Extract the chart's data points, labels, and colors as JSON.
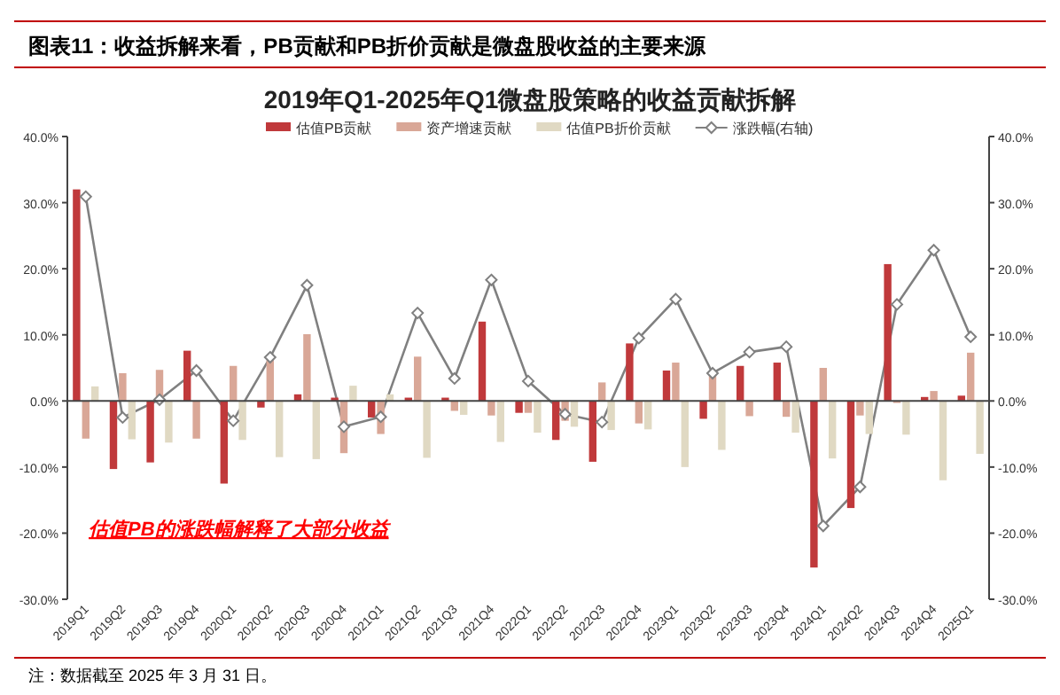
{
  "chart_data": {
    "type": "bar",
    "title": "图表11：收益拆解来看，PB贡献和PB折价贡献是微盘股收益的主要来源",
    "subtitle": "2019年Q1-2025年Q1微盘股策略的收益贡献拆解",
    "categories": [
      "2019Q1",
      "2019Q2",
      "2019Q3",
      "2019Q4",
      "2020Q1",
      "2020Q2",
      "2020Q3",
      "2020Q4",
      "2021Q1",
      "2021Q2",
      "2021Q3",
      "2021Q4",
      "2022Q1",
      "2022Q2",
      "2022Q3",
      "2022Q4",
      "2023Q1",
      "2023Q2",
      "2023Q3",
      "2023Q4",
      "2024Q1",
      "2024Q2",
      "2024Q3",
      "2024Q4",
      "2025Q1"
    ],
    "series": [
      {
        "name": "估值PB贡献",
        "color": "#c0393b",
        "values": [
          32.0,
          -10.3,
          -9.3,
          7.6,
          -12.5,
          -1.0,
          1.0,
          0.5,
          -2.5,
          0.5,
          0.5,
          12.0,
          -1.8,
          -5.9,
          -9.2,
          8.7,
          4.6,
          -2.7,
          5.3,
          5.8,
          -25.2,
          -16.2,
          20.7,
          0.6,
          0.8
        ]
      },
      {
        "name": "资产增速贡献",
        "color": "#d9a797",
        "values": [
          -5.7,
          4.2,
          4.7,
          -5.7,
          5.3,
          6.2,
          10.1,
          -7.9,
          -5.0,
          6.7,
          -1.5,
          -2.2,
          -1.8,
          -3.0,
          2.8,
          -3.4,
          5.8,
          4.3,
          -2.3,
          -2.4,
          5.0,
          -2.2,
          -0.3,
          1.5,
          7.3
        ]
      },
      {
        "name": "估值PB折价贡献",
        "color": "#e0d9c3",
        "values": [
          2.2,
          -5.8,
          -6.3,
          null,
          -5.9,
          -8.5,
          -8.8,
          2.3,
          1.0,
          -8.6,
          -2.1,
          -6.2,
          -4.8,
          -3.9,
          -4.4,
          -4.3,
          -10.0,
          -7.4,
          null,
          -4.8,
          -8.7,
          -5.0,
          -5.1,
          -12.0,
          -8.0
        ]
      },
      {
        "name": "涨跌幅(右轴)",
        "type": "line",
        "axis": "y2",
        "color": "#808080",
        "marker": "diamond",
        "values": [
          30.9,
          -2.5,
          0.2,
          4.6,
          -3.0,
          6.6,
          17.5,
          -3.9,
          -2.4,
          13.3,
          3.4,
          18.3,
          3.0,
          -2.0,
          -3.2,
          9.5,
          15.4,
          4.2,
          7.4,
          8.2,
          -18.9,
          -13.0,
          14.6,
          22.8,
          9.7
        ]
      }
    ],
    "ylim": [
      -30,
      40
    ],
    "yticks": [
      {
        "value": -30,
        "label": "-30.0%"
      },
      {
        "value": -20,
        "label": "-20.0%"
      },
      {
        "value": -10,
        "label": "-10.0%"
      },
      {
        "value": 0,
        "label": "0.0%"
      },
      {
        "value": 10,
        "label": "10.0%"
      },
      {
        "value": 20,
        "label": "20.0%"
      },
      {
        "value": 30,
        "label": "30.0%"
      },
      {
        "value": 40,
        "label": "40.0%"
      }
    ],
    "y2lim": [
      -30,
      40
    ],
    "y2ticks": [
      {
        "value": -30,
        "label": "-30.0%"
      },
      {
        "value": -20,
        "label": "-20.0%"
      },
      {
        "value": -10,
        "label": "-10.0%"
      },
      {
        "value": 0,
        "label": "0.0%"
      },
      {
        "value": 10,
        "label": "10.0%"
      },
      {
        "value": 20,
        "label": "20.0%"
      },
      {
        "value": 30,
        "label": "30.0%"
      },
      {
        "value": 40,
        "label": "40.0%"
      }
    ],
    "legend": "top",
    "annotations": [
      "估值PB的涨跌幅解释了大部分收益",
      "注：数据截至 2025 年 3 月 31 日。"
    ]
  }
}
